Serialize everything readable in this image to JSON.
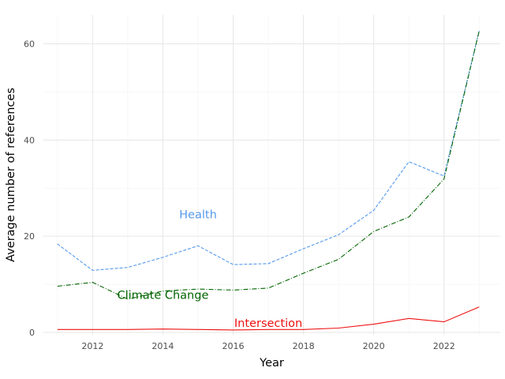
{
  "chart_data": {
    "type": "line",
    "title": "",
    "xlabel": "Year",
    "ylabel": "Average number of references",
    "x": [
      2011,
      2012,
      2013,
      2014,
      2015,
      2016,
      2017,
      2018,
      2019,
      2020,
      2021,
      2022,
      2023
    ],
    "xlim": [
      2010.6,
      2023.6
    ],
    "ylim": [
      -0.5,
      66
    ],
    "xticks": [
      2012,
      2014,
      2016,
      2018,
      2020,
      2022
    ],
    "yticks": [
      0,
      20,
      40,
      60
    ],
    "grid": true,
    "legend": "none",
    "series": [
      {
        "name": "Health",
        "color": "#5599ee",
        "dash": "dashed",
        "values": [
          18.4,
          12.9,
          13.5,
          15.6,
          18.0,
          14.1,
          14.3,
          17.4,
          20.3,
          25.4,
          35.5,
          32.5,
          62.7
        ],
        "label_pos": [
          2015.0,
          24.5
        ]
      },
      {
        "name": "Climate Change",
        "color": "#006400",
        "dash": "dashdot",
        "values": [
          9.6,
          10.4,
          6.9,
          8.6,
          9.0,
          8.8,
          9.2,
          12.3,
          15.2,
          21.0,
          24.0,
          31.9,
          62.7
        ],
        "label_pos": [
          2014.0,
          7.8
        ]
      },
      {
        "name": "Intersection",
        "color": "#ee1111",
        "dash": "solid",
        "values": [
          0.6,
          0.6,
          0.6,
          0.7,
          0.6,
          0.5,
          0.6,
          0.6,
          0.9,
          1.7,
          2.9,
          2.2,
          5.3
        ],
        "label_pos": [
          2017.0,
          2.0
        ]
      }
    ]
  }
}
